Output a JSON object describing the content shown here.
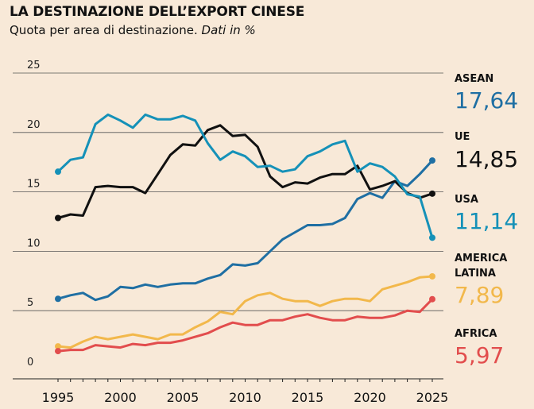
{
  "header": {
    "title": "LA DESTINAZIONE DELL’EXPORT CINESE",
    "subtitle_main": "Quota per area di destinazione.",
    "subtitle_em": "Dati in %"
  },
  "chart_data": {
    "type": "line",
    "title": "LA DESTINAZIONE DELL’EXPORT CINESE",
    "subtitle": "Quota per area di destinazione. Dati in %",
    "x": [
      1995,
      1996,
      1997,
      1998,
      1999,
      2000,
      2001,
      2002,
      2003,
      2004,
      2005,
      2006,
      2007,
      2008,
      2009,
      2010,
      2011,
      2012,
      2013,
      2014,
      2015,
      2016,
      2017,
      2018,
      2019,
      2020,
      2021,
      2022,
      2023,
      2024,
      2025
    ],
    "x_ticks": [
      1995,
      2000,
      2005,
      2010,
      2015,
      2020,
      2025
    ],
    "y_ticks": [
      0,
      5,
      10,
      15,
      20,
      25
    ],
    "xlim": [
      1995,
      2025
    ],
    "ylim": [
      0,
      25
    ],
    "grid": "horizontal",
    "legend": "right-end labels",
    "series": [
      {
        "name_lines": [
          "ASEAN"
        ],
        "value_label": "17,64",
        "color": "#1f6fa3",
        "values": [
          6.0,
          6.3,
          6.5,
          5.9,
          6.2,
          7.0,
          6.9,
          7.2,
          7.0,
          7.2,
          7.3,
          7.3,
          7.7,
          8.0,
          8.9,
          8.8,
          9.0,
          10.0,
          11.0,
          11.6,
          12.2,
          12.2,
          12.3,
          12.8,
          14.4,
          14.9,
          14.5,
          15.9,
          15.5,
          16.5,
          17.64
        ]
      },
      {
        "name_lines": [
          "UE"
        ],
        "value_label": "14,85",
        "color": "#111111",
        "values": [
          12.8,
          13.1,
          13.0,
          15.4,
          15.5,
          15.4,
          15.4,
          14.9,
          16.5,
          18.1,
          19.0,
          18.9,
          20.2,
          20.6,
          19.7,
          19.8,
          18.8,
          16.3,
          15.4,
          15.8,
          15.7,
          16.2,
          16.5,
          16.5,
          17.2,
          15.2,
          15.5,
          15.9,
          14.9,
          14.5,
          14.85
        ]
      },
      {
        "name_lines": [
          "USA"
        ],
        "value_label": "11,14",
        "color": "#1591b8",
        "values": [
          16.7,
          17.7,
          17.9,
          20.7,
          21.5,
          21.0,
          20.4,
          21.5,
          21.1,
          21.1,
          21.4,
          21.0,
          19.1,
          17.7,
          18.4,
          18.0,
          17.1,
          17.2,
          16.7,
          16.9,
          18.0,
          18.4,
          19.0,
          19.3,
          16.7,
          17.4,
          17.1,
          16.3,
          14.8,
          14.6,
          11.14
        ]
      },
      {
        "name_lines": [
          "AMERICA",
          "LATINA"
        ],
        "value_label": "7,89",
        "color": "#f2b84b",
        "values": [
          2.0,
          1.9,
          2.4,
          2.8,
          2.6,
          2.8,
          3.0,
          2.8,
          2.6,
          3.0,
          3.0,
          3.6,
          4.1,
          4.9,
          4.7,
          5.8,
          6.3,
          6.5,
          6.0,
          5.8,
          5.8,
          5.4,
          5.8,
          6.0,
          6.0,
          5.8,
          6.8,
          7.1,
          7.4,
          7.8,
          7.89
        ]
      },
      {
        "name_lines": [
          "AFRICA"
        ],
        "value_label": "5,97",
        "color": "#e24d4d",
        "values": [
          1.6,
          1.7,
          1.7,
          2.1,
          2.0,
          1.9,
          2.2,
          2.1,
          2.3,
          2.3,
          2.5,
          2.8,
          3.1,
          3.6,
          4.0,
          3.8,
          3.8,
          4.2,
          4.2,
          4.5,
          4.7,
          4.4,
          4.2,
          4.2,
          4.5,
          4.4,
          4.4,
          4.6,
          5.0,
          4.9,
          5.97
        ]
      }
    ]
  }
}
